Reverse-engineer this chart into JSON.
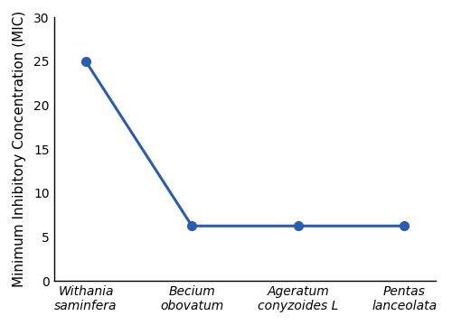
{
  "x_labels": [
    "Withania\nsaminfera",
    "Becium\nobovatum",
    "Ageratum\nconyzoides L",
    "Pentas\nlanceolata"
  ],
  "y_values": [
    25,
    6.25,
    6.25,
    6.25
  ],
  "ylabel": "Minimum Inhibitory Concentration (MIC)",
  "ylim": [
    0,
    30
  ],
  "yticks": [
    0,
    5,
    10,
    15,
    20,
    25,
    30
  ],
  "line_color": "#2B5DAD",
  "marker": "o",
  "marker_size": 7,
  "line_width": 2.2,
  "background_color": "#ffffff",
  "tick_label_fontsize": 10,
  "ylabel_fontsize": 11,
  "italic_labels": true
}
